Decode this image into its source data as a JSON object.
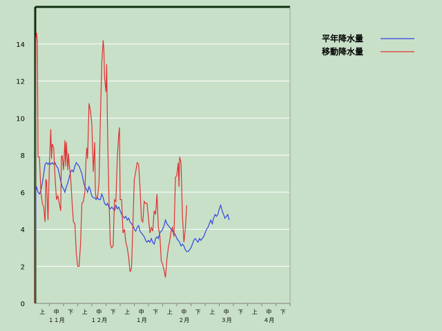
{
  "chart_data": {
    "type": "line",
    "ylim": [
      0,
      16
    ],
    "y_ticks": [
      "0",
      "2",
      "4",
      "6",
      "8",
      "10",
      "12",
      "14"
    ],
    "grid": "horizontal",
    "legend_position": "top-right",
    "x_sub_labels": [
      "上",
      "中",
      "下",
      "上",
      "中",
      "下",
      "上",
      "中",
      "下",
      "上",
      "中",
      "下",
      "上",
      "中",
      "下",
      "上",
      "中",
      "下"
    ],
    "x_month_labels": [
      "１１月",
      "１２月",
      "１月",
      "２月",
      "３月",
      "４月"
    ],
    "x_days": 180,
    "series": [
      {
        "name": "平年降水量",
        "color": "#3344dd",
        "points": [
          [
            0,
            0
          ],
          [
            0.5,
            6.1
          ],
          [
            1,
            6.3
          ],
          [
            2,
            6.0
          ],
          [
            3,
            5.9
          ],
          [
            4,
            6.1
          ],
          [
            5,
            6.5
          ],
          [
            6,
            7.0
          ],
          [
            7,
            7.5
          ],
          [
            8,
            7.6
          ],
          [
            9,
            7.5
          ],
          [
            10,
            7.6
          ],
          [
            11,
            7.5
          ],
          [
            12,
            7.6
          ],
          [
            13,
            7.5
          ],
          [
            14,
            7.6
          ],
          [
            15,
            7.4
          ],
          [
            16,
            7.3
          ],
          [
            17,
            7.0
          ],
          [
            18,
            6.6
          ],
          [
            19,
            6.3
          ],
          [
            20,
            6.2
          ],
          [
            21,
            6.0
          ],
          [
            22,
            6.3
          ],
          [
            23,
            6.5
          ],
          [
            24,
            6.8
          ],
          [
            25,
            7.1
          ],
          [
            26,
            7.2
          ],
          [
            27,
            7.1
          ],
          [
            28,
            7.4
          ],
          [
            29,
            7.6
          ],
          [
            30,
            7.5
          ],
          [
            31,
            7.4
          ],
          [
            32,
            7.2
          ],
          [
            33,
            7.0
          ],
          [
            34,
            6.6
          ],
          [
            35,
            6.3
          ],
          [
            36,
            6.2
          ],
          [
            37,
            6.0
          ],
          [
            38,
            6.3
          ],
          [
            39,
            6.1
          ],
          [
            40,
            5.8
          ],
          [
            41,
            5.7
          ],
          [
            42,
            5.7
          ],
          [
            43,
            5.6
          ],
          [
            44,
            5.7
          ],
          [
            45,
            5.6
          ],
          [
            46,
            5.6
          ],
          [
            47,
            5.9
          ],
          [
            48,
            5.7
          ],
          [
            49,
            5.4
          ],
          [
            50,
            5.3
          ],
          [
            51,
            5.4
          ],
          [
            52,
            5.2
          ],
          [
            53,
            5.1
          ],
          [
            54,
            5.2
          ],
          [
            55,
            5.1
          ],
          [
            56,
            5.0
          ],
          [
            57,
            5.3
          ],
          [
            58,
            5.1
          ],
          [
            59,
            5.2
          ],
          [
            60,
            5.0
          ],
          [
            61,
            4.8
          ],
          [
            62,
            4.7
          ],
          [
            63,
            4.6
          ],
          [
            64,
            4.7
          ],
          [
            65,
            4.5
          ],
          [
            66,
            4.6
          ],
          [
            67,
            4.4
          ],
          [
            68,
            4.3
          ],
          [
            69,
            4.2
          ],
          [
            70,
            4.0
          ],
          [
            71,
            3.9
          ],
          [
            72,
            4.1
          ],
          [
            73,
            4.2
          ],
          [
            74,
            3.9
          ],
          [
            75,
            3.8
          ],
          [
            76,
            3.7
          ],
          [
            77,
            3.6
          ],
          [
            78,
            3.4
          ],
          [
            79,
            3.3
          ],
          [
            80,
            3.4
          ],
          [
            81,
            3.3
          ],
          [
            82,
            3.5
          ],
          [
            83,
            3.3
          ],
          [
            84,
            3.2
          ],
          [
            85,
            3.5
          ],
          [
            86,
            3.6
          ],
          [
            87,
            3.5
          ],
          [
            88,
            3.8
          ],
          [
            89,
            3.9
          ],
          [
            90,
            4.0
          ],
          [
            91,
            4.2
          ],
          [
            92,
            4.5
          ],
          [
            93,
            4.3
          ],
          [
            94,
            4.2
          ],
          [
            95,
            4.1
          ],
          [
            96,
            4.0
          ],
          [
            97,
            3.9
          ],
          [
            98,
            3.8
          ],
          [
            99,
            3.7
          ],
          [
            100,
            3.5
          ],
          [
            101,
            3.4
          ],
          [
            102,
            3.3
          ],
          [
            103,
            3.1
          ],
          [
            104,
            3.2
          ],
          [
            105,
            3.1
          ],
          [
            106,
            2.9
          ],
          [
            107,
            2.8
          ],
          [
            108,
            2.8
          ],
          [
            109,
            2.9
          ],
          [
            110,
            3.0
          ],
          [
            111,
            3.2
          ],
          [
            112,
            3.4
          ],
          [
            113,
            3.5
          ],
          [
            114,
            3.4
          ],
          [
            115,
            3.3
          ],
          [
            116,
            3.5
          ],
          [
            117,
            3.4
          ],
          [
            118,
            3.5
          ],
          [
            119,
            3.6
          ],
          [
            120,
            3.8
          ],
          [
            121,
            4.0
          ],
          [
            122,
            4.1
          ],
          [
            123,
            4.3
          ],
          [
            124,
            4.5
          ],
          [
            125,
            4.3
          ],
          [
            126,
            4.6
          ],
          [
            127,
            4.8
          ],
          [
            128,
            4.7
          ],
          [
            129,
            4.8
          ],
          [
            130,
            5.1
          ],
          [
            131,
            5.3
          ],
          [
            132,
            5.0
          ],
          [
            133,
            4.8
          ],
          [
            134,
            4.6
          ],
          [
            135,
            4.7
          ],
          [
            136,
            4.8
          ],
          [
            137,
            4.5
          ]
        ]
      },
      {
        "name": "移動降水量",
        "color": "#e03030",
        "points": [
          [
            0,
            0
          ],
          [
            0.5,
            14.3
          ],
          [
            1,
            14.6
          ],
          [
            1.5,
            14.1
          ],
          [
            2,
            7.9
          ],
          [
            3,
            7.9
          ],
          [
            4,
            6.0
          ],
          [
            5,
            5.4
          ],
          [
            6,
            5.2
          ],
          [
            7,
            4.4
          ],
          [
            7.5,
            6.7
          ],
          [
            8,
            6.6
          ],
          [
            9,
            4.5
          ],
          [
            10,
            7.4
          ],
          [
            11,
            9.4
          ],
          [
            11.5,
            7.8
          ],
          [
            12,
            8.6
          ],
          [
            13,
            8.4
          ],
          [
            14,
            6.8
          ],
          [
            15,
            5.6
          ],
          [
            16,
            5.8
          ],
          [
            17,
            5.4
          ],
          [
            18,
            5.0
          ],
          [
            18.5,
            7.9
          ],
          [
            19,
            8.0
          ],
          [
            20,
            7.2
          ],
          [
            21,
            8.8
          ],
          [
            21.5,
            7.4
          ],
          [
            22,
            8.7
          ],
          [
            23,
            7.2
          ],
          [
            23.5,
            8.1
          ],
          [
            24,
            7.5
          ],
          [
            25,
            6.8
          ],
          [
            26,
            5.5
          ],
          [
            27,
            4.4
          ],
          [
            28,
            4.3
          ],
          [
            29,
            2.7
          ],
          [
            30,
            2.0
          ],
          [
            31,
            2.0
          ],
          [
            32,
            3.2
          ],
          [
            33,
            5.4
          ],
          [
            34,
            5.5
          ],
          [
            35,
            6.0
          ],
          [
            36,
            8.0
          ],
          [
            36.5,
            8.4
          ],
          [
            37,
            7.8
          ],
          [
            38,
            10.8
          ],
          [
            39,
            10.4
          ],
          [
            40,
            9.7
          ],
          [
            41,
            7.1
          ],
          [
            42,
            8.7
          ],
          [
            42.5,
            6.0
          ],
          [
            43,
            5.7
          ],
          [
            44,
            5.7
          ],
          [
            45,
            6.5
          ],
          [
            46,
            9.9
          ],
          [
            47,
            13.0
          ],
          [
            48,
            14.2
          ],
          [
            48.5,
            13.7
          ],
          [
            49,
            12.2
          ],
          [
            50,
            11.4
          ],
          [
            50.5,
            12.9
          ],
          [
            51,
            9.5
          ],
          [
            52,
            5.9
          ],
          [
            53,
            3.2
          ],
          [
            54,
            3.0
          ],
          [
            55,
            3.1
          ],
          [
            56,
            5.6
          ],
          [
            57,
            5.5
          ],
          [
            58,
            7.9
          ],
          [
            59,
            9.1
          ],
          [
            59.5,
            9.5
          ],
          [
            60,
            5.6
          ],
          [
            61,
            5.6
          ],
          [
            62,
            3.8
          ],
          [
            63,
            4.0
          ],
          [
            64,
            3.3
          ],
          [
            65,
            3.0
          ],
          [
            66,
            2.5
          ],
          [
            67,
            1.7
          ],
          [
            68,
            1.9
          ],
          [
            69,
            4.3
          ],
          [
            70,
            6.7
          ],
          [
            71,
            7.1
          ],
          [
            72,
            7.6
          ],
          [
            73,
            7.5
          ],
          [
            74,
            6.3
          ],
          [
            75,
            4.5
          ],
          [
            76,
            4.4
          ],
          [
            77,
            5.5
          ],
          [
            78,
            5.4
          ],
          [
            79,
            5.4
          ],
          [
            80,
            4.6
          ],
          [
            81,
            3.8
          ],
          [
            82,
            4.1
          ],
          [
            83,
            3.9
          ],
          [
            84,
            5.0
          ],
          [
            85,
            4.8
          ],
          [
            86,
            5.9
          ],
          [
            87,
            4.1
          ],
          [
            88,
            3.7
          ],
          [
            89,
            2.3
          ],
          [
            90,
            2.1
          ],
          [
            91,
            1.8
          ],
          [
            92,
            1.4
          ],
          [
            93,
            2.4
          ],
          [
            94,
            3.0
          ],
          [
            95,
            3.4
          ],
          [
            96,
            3.9
          ],
          [
            97,
            4.1
          ],
          [
            98,
            3.6
          ],
          [
            99,
            6.8
          ],
          [
            100,
            6.9
          ],
          [
            101,
            7.6
          ],
          [
            101.5,
            6.3
          ],
          [
            102,
            7.9
          ],
          [
            103,
            7.6
          ],
          [
            104,
            4.7
          ],
          [
            105,
            3.3
          ],
          [
            106,
            4.0
          ],
          [
            107,
            5.3
          ]
        ]
      }
    ]
  }
}
